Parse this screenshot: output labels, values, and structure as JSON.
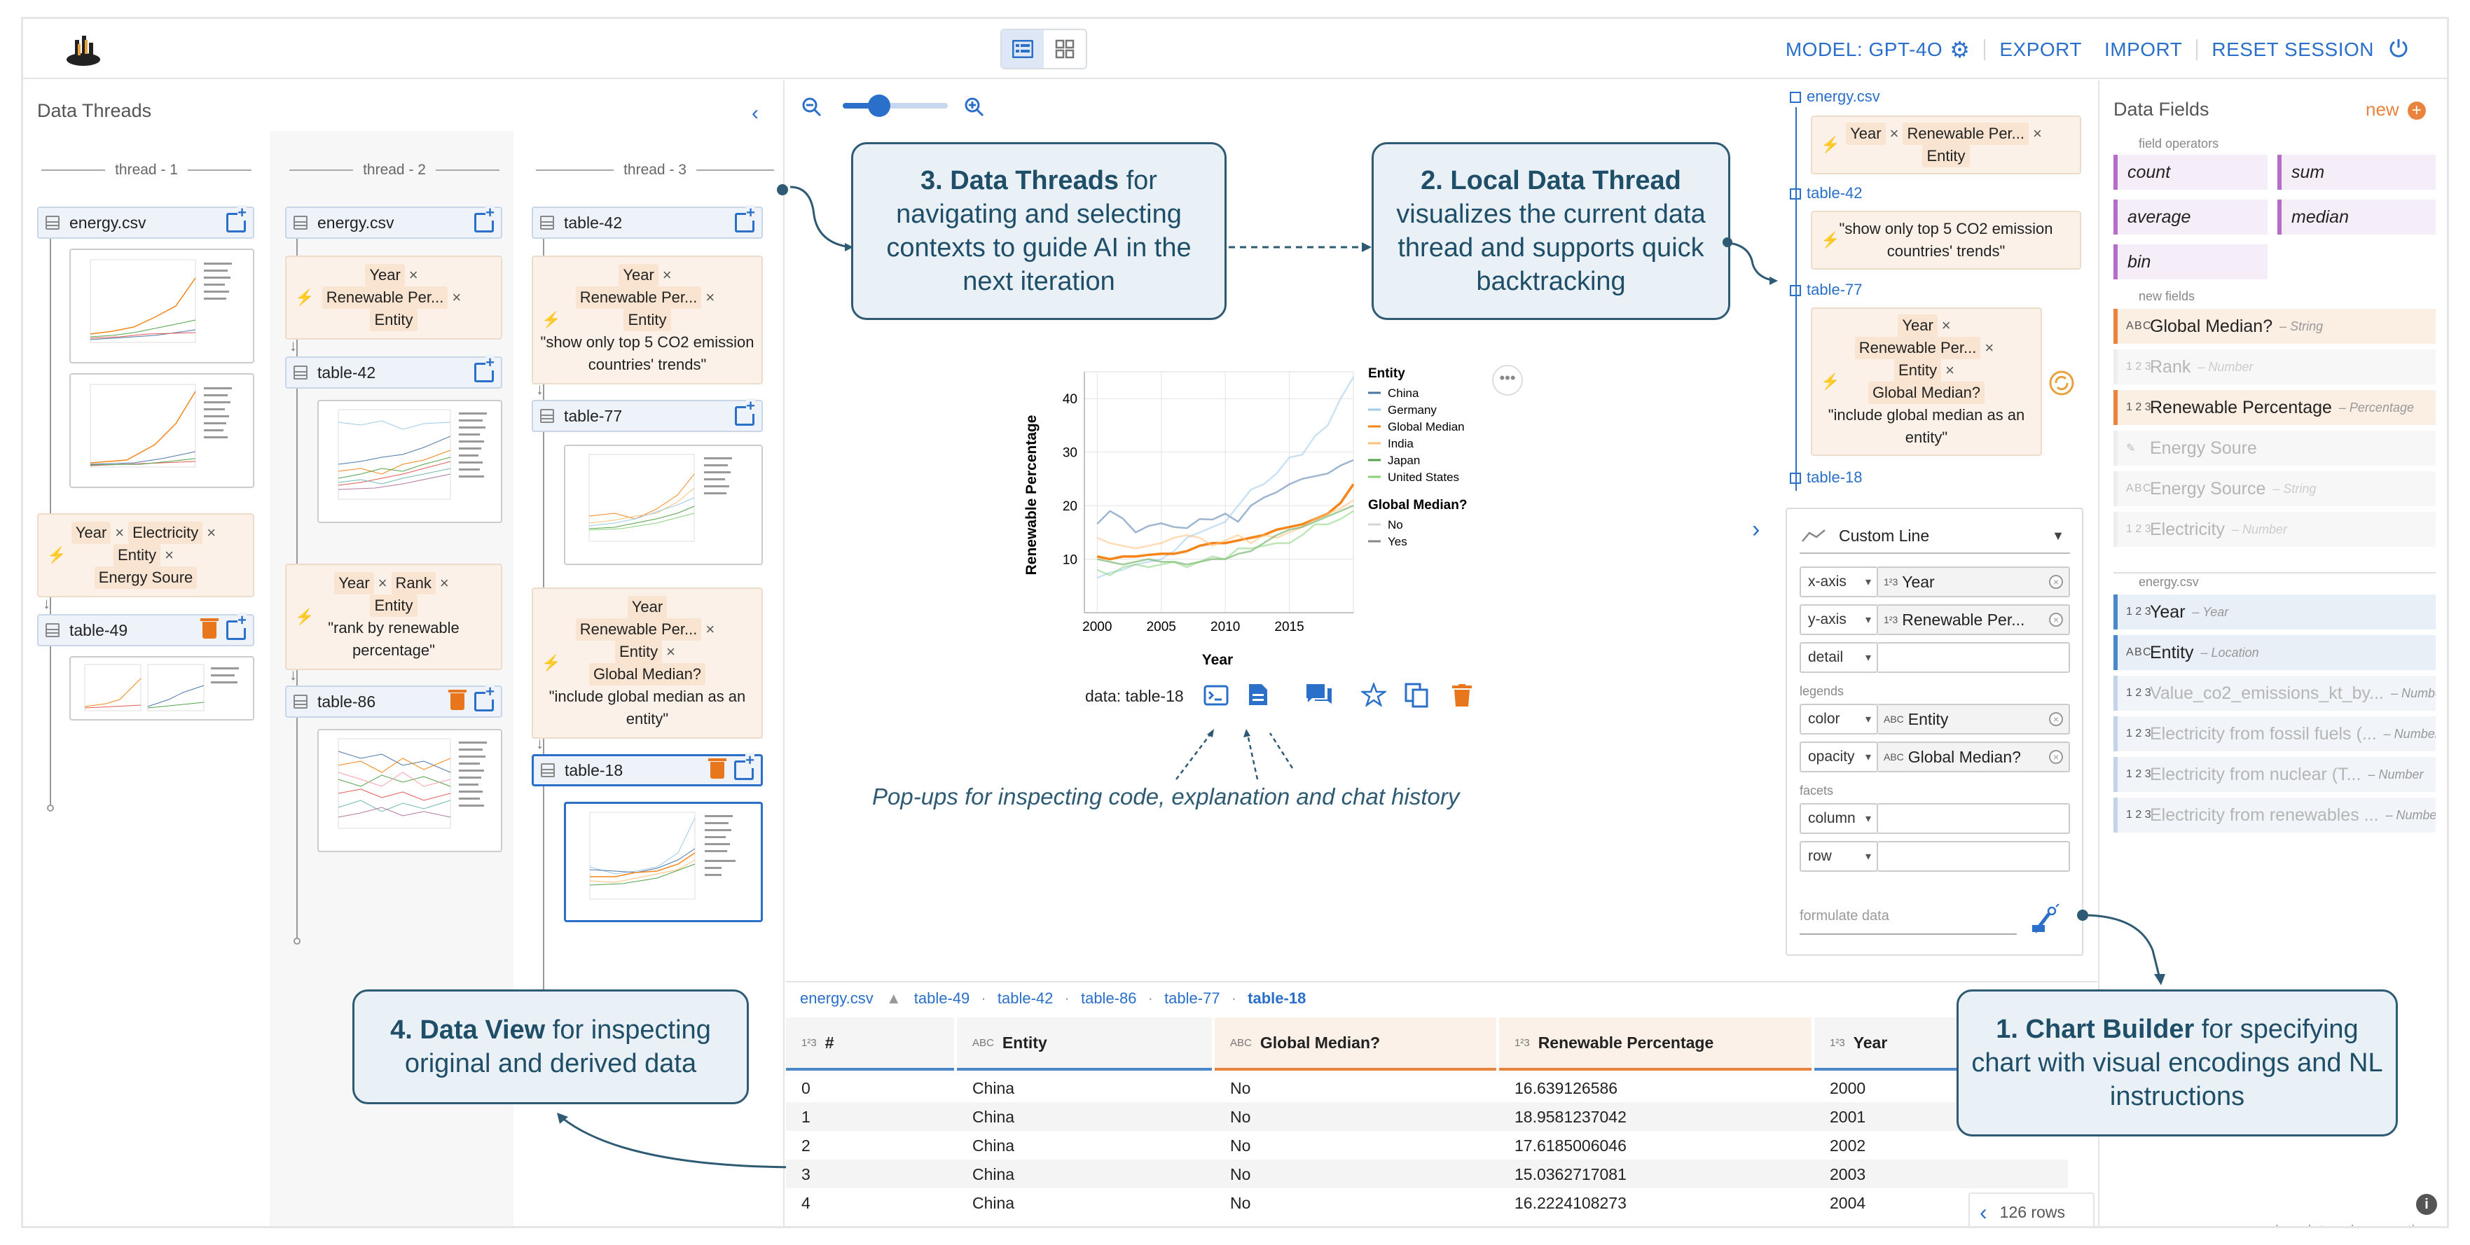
{
  "header": {
    "model_label": "MODEL: GPT-4O",
    "export_label": "EXPORT",
    "import_label": "IMPORT",
    "reset_label": "RESET SESSION"
  },
  "threads_panel": {
    "title": "Data Threads",
    "threads": [
      {
        "label": "thread - 1"
      },
      {
        "label": "thread - 2"
      },
      {
        "label": "thread - 3"
      }
    ],
    "t1": {
      "root": "energy.csv",
      "instr_fields": [
        "Year",
        "Electricity",
        "Entity",
        "Energy Soure"
      ],
      "table": "table-49"
    },
    "t2": {
      "root": "energy.csv",
      "instr1_fields": [
        "Year",
        "Renewable Per...",
        "Entity"
      ],
      "table1": "table-42",
      "instr2_fields": [
        "Year",
        "Rank",
        "Entity"
      ],
      "instr2_text": "\"rank by renewable percentage\"",
      "table2": "table-86"
    },
    "t3": {
      "root": "table-42",
      "instr1_fields": [
        "Year",
        "Renewable Per...",
        "Entity"
      ],
      "instr1_text": "\"show only top 5 CO2 emission countries' trends\"",
      "table1": "table-77",
      "instr2_fields": [
        "Year",
        "Renewable Per...",
        "Entity",
        "Global Median?"
      ],
      "instr2_text": "\"include global median as an entity\"",
      "table2": "table-18"
    }
  },
  "callouts": {
    "c3_bold": "3. Data Threads",
    "c3_text": " for navigating and selecting contexts to guide AI in the next iteration",
    "c2_bold": "2. Local Data Thread",
    "c2_text": "visualizes the current data thread and supports quick backtracking",
    "c4_bold": "4. Data View",
    "c4_text": " for inspecting original and derived data",
    "c1_bold": "1. Chart Builder",
    "c1_text": " for specifying chart with visual encodings and NL instructions",
    "popups_note": "Pop-ups for inspecting code, explanation and chat history"
  },
  "chart_data": {
    "type": "line",
    "xlabel": "Year",
    "ylabel": "Renewable Percentage",
    "xlim": [
      1999,
      2020
    ],
    "ylim": [
      0,
      45
    ],
    "x_ticks": [
      2000,
      2005,
      2010,
      2015
    ],
    "y_ticks": [
      10,
      20,
      30,
      40
    ],
    "legend_title_color": "Entity",
    "legend_title_opacity": "Global Median?",
    "opacity_legend": [
      "No",
      "Yes"
    ],
    "x": [
      2000,
      2001,
      2002,
      2003,
      2004,
      2005,
      2006,
      2007,
      2008,
      2009,
      2010,
      2011,
      2012,
      2013,
      2014,
      2015,
      2016,
      2017,
      2018,
      2019,
      2020
    ],
    "series": [
      {
        "name": "China",
        "color": "#4c78a8",
        "values": [
          16.6,
          19.0,
          17.6,
          15.0,
          16.2,
          16.7,
          16.0,
          15.8,
          17.5,
          17.4,
          18.5,
          17.0,
          20.0,
          21.5,
          22.5,
          24.0,
          25.0,
          25.5,
          26.0,
          27.5,
          28.5
        ]
      },
      {
        "name": "Germany",
        "color": "#9ecae9",
        "values": [
          6.5,
          7.5,
          8.0,
          9.0,
          9.5,
          10.0,
          11.5,
          14.0,
          15.0,
          16.0,
          17.0,
          20.0,
          23.0,
          24.0,
          26.0,
          29.0,
          29.5,
          33.0,
          35.0,
          40.0,
          44.0
        ]
      },
      {
        "name": "Global Median",
        "color": "#f58518",
        "values": [
          10.5,
          10.0,
          10.5,
          10.5,
          10.8,
          11.0,
          11.0,
          11.5,
          12.5,
          13.0,
          13.0,
          13.5,
          14.0,
          14.5,
          15.5,
          16.0,
          16.5,
          17.5,
          18.5,
          20.5,
          24.0
        ]
      },
      {
        "name": "India",
        "color": "#ffbf79",
        "values": [
          14.0,
          13.0,
          12.5,
          12.0,
          12.5,
          13.0,
          14.0,
          14.5,
          14.0,
          12.5,
          13.5,
          14.5,
          13.0,
          14.5,
          14.0,
          15.0,
          16.0,
          17.5,
          18.5,
          19.5,
          21.0
        ]
      },
      {
        "name": "Japan",
        "color": "#54a24b",
        "values": [
          10.0,
          9.5,
          9.0,
          9.5,
          10.0,
          9.5,
          9.5,
          9.0,
          9.5,
          10.0,
          10.0,
          11.0,
          11.5,
          13.0,
          14.5,
          15.5,
          16.0,
          17.0,
          18.0,
          19.0,
          20.0
        ]
      },
      {
        "name": "United States",
        "color": "#88d27a",
        "values": [
          8.0,
          7.0,
          8.5,
          9.0,
          8.5,
          9.0,
          9.5,
          8.5,
          9.5,
          10.5,
          10.0,
          12.0,
          12.0,
          12.5,
          13.0,
          13.0,
          14.5,
          16.5,
          16.5,
          17.5,
          19.0
        ]
      }
    ]
  },
  "chart_toolbar": {
    "data_label": "data: table-18"
  },
  "local_thread": {
    "root": "energy.csv",
    "instr1_fields": [
      "Year",
      "Renewable Per...",
      "Entity"
    ],
    "table1": "table-42",
    "instr2_text": "\"show only top 5 CO2 emission countries' trends\"",
    "table2": "table-77",
    "instr3_fields": [
      "Year",
      "Renewable Per...",
      "Entity",
      "Global Median?"
    ],
    "instr3_text": "\"include global median as an entity\"",
    "table3": "table-18"
  },
  "encodings": {
    "chart_type": "Custom Line",
    "rows": [
      {
        "channel": "x-axis",
        "field": "Year",
        "icon": "number"
      },
      {
        "channel": "y-axis",
        "field": "Renewable Per...",
        "icon": "number"
      },
      {
        "channel": "detail",
        "field": "",
        "icon": ""
      },
      {
        "channel": "color",
        "field": "Entity",
        "icon": "string"
      },
      {
        "channel": "opacity",
        "field": "Global Median?",
        "icon": "string"
      },
      {
        "channel": "column",
        "field": "",
        "icon": ""
      },
      {
        "channel": "row",
        "field": "",
        "icon": ""
      }
    ],
    "legends_label": "legends",
    "facets_label": "facets",
    "formulate_placeholder": "formulate data"
  },
  "data_fields": {
    "title": "Data Fields",
    "new_label": "new",
    "field_operators_label": "field operators",
    "operators": [
      "count",
      "sum",
      "average",
      "median",
      "bin"
    ],
    "new_fields_label": "new fields",
    "new_fields": [
      {
        "name": "Global Median?",
        "type": "– String",
        "icon": "A B C",
        "style": "orange"
      },
      {
        "name": "Rank",
        "type": "– Number",
        "icon": "1 2 3",
        "style": "fade"
      },
      {
        "name": "Renewable Percentage",
        "type": "– Percentage",
        "icon": "1 2 3",
        "style": "orange"
      },
      {
        "name": "Energy Soure",
        "type": "",
        "icon": "✎",
        "style": "fade"
      },
      {
        "name": "Energy Source",
        "type": "– String",
        "icon": "A B C",
        "style": "fade"
      },
      {
        "name": "Electricity",
        "type": "– Number",
        "icon": "1 2 3",
        "style": "fade"
      }
    ],
    "source_label": "energy.csv",
    "source_fields": [
      {
        "name": "Year",
        "type": "– Year",
        "icon": "1 2 3",
        "style": "blue"
      },
      {
        "name": "Entity",
        "type": "– Location",
        "icon": "A B C",
        "style": "blue"
      },
      {
        "name": "Value_co2_emissions_kt_by...",
        "type": "– Number",
        "icon": "1 2 3",
        "style": "bluefade"
      },
      {
        "name": "Electricity from fossil fuels (...",
        "type": "– Number",
        "icon": "1 2 3",
        "style": "bluefade"
      },
      {
        "name": "Electricity from nuclear (T...",
        "type": "– Number",
        "icon": "1 2 3",
        "style": "bluefade"
      },
      {
        "name": "Electricity from renewables ...",
        "type": "– Number",
        "icon": "1 2 3",
        "style": "bluefade"
      }
    ],
    "privacy_label": "view data privacy notice"
  },
  "data_view": {
    "breadcrumb": [
      "energy.csv",
      "table-49",
      "table-42",
      "table-86",
      "table-77",
      "table-18"
    ],
    "columns": [
      "#",
      "Entity",
      "Global Median?",
      "Renewable Percentage",
      "Year"
    ],
    "rows": [
      [
        "0",
        "China",
        "No",
        "16.639126586",
        "2000"
      ],
      [
        "1",
        "China",
        "No",
        "18.9581237042",
        "2001"
      ],
      [
        "2",
        "China",
        "No",
        "17.6185006046",
        "2002"
      ],
      [
        "3",
        "China",
        "No",
        "15.0362717081",
        "2003"
      ],
      [
        "4",
        "China",
        "No",
        "16.2224108273",
        "2004"
      ]
    ],
    "row_count": "126 rows"
  }
}
